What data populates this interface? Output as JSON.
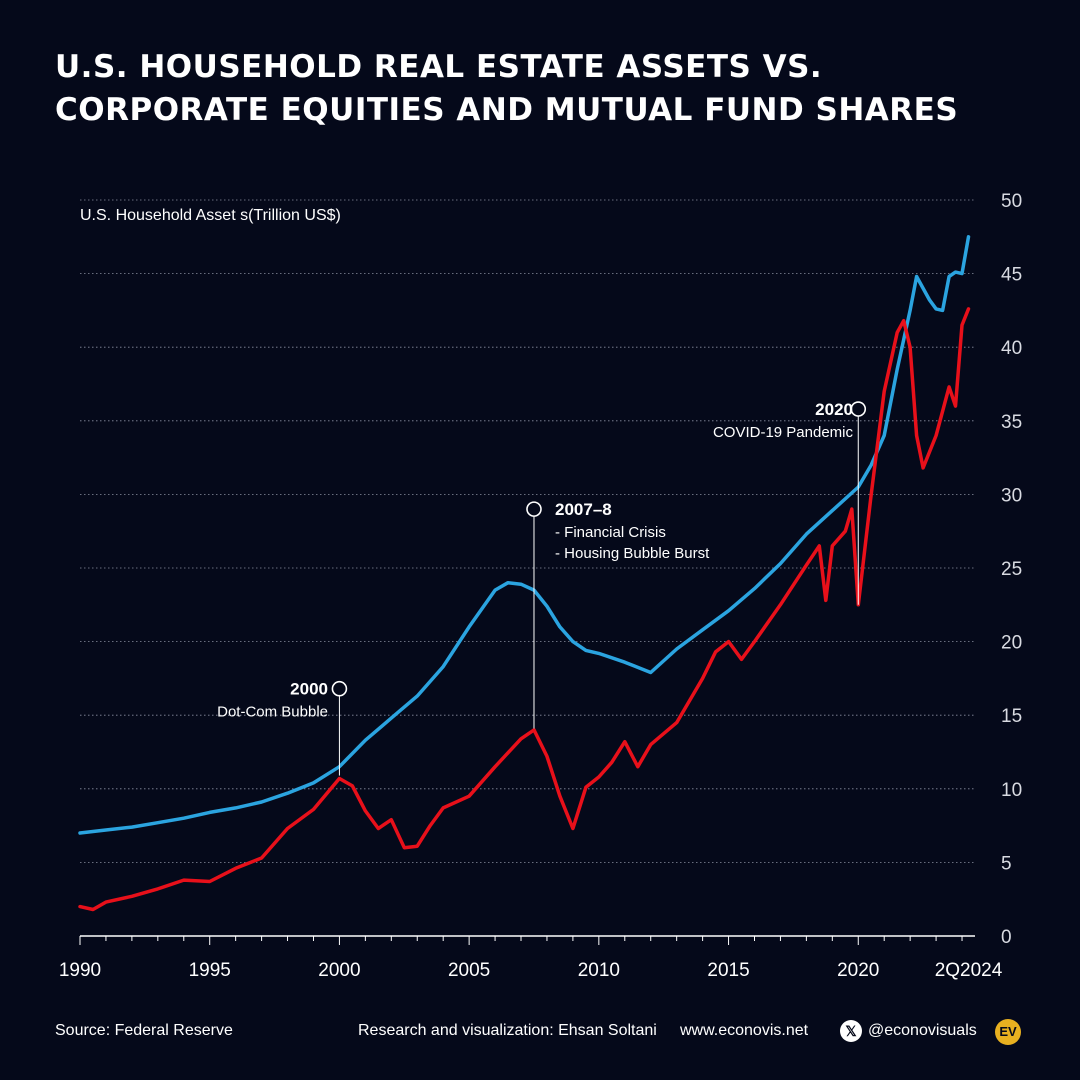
{
  "header": {
    "title_line1": "U.S. HOUSEHOLD REAL ESTATE ASSETS VS.",
    "title_line2": "CORPORATE EQUITIES AND MUTUAL FUND SHARES"
  },
  "chart_data": {
    "type": "line",
    "ylabel": "U.S. Household Asset s(Trillion US$)",
    "ylim": [
      0,
      50
    ],
    "y_ticks": [
      "0",
      "5",
      "10",
      "15",
      "20",
      "25",
      "30",
      "35",
      "40",
      "45",
      "50"
    ],
    "xlim": [
      1990,
      2024.5
    ],
    "x_ticks": [
      {
        "value": 1990,
        "label": "1990"
      },
      {
        "value": 1995,
        "label": "1995"
      },
      {
        "value": 2000,
        "label": "2000"
      },
      {
        "value": 2005,
        "label": "2005"
      },
      {
        "value": 2010,
        "label": "2010"
      },
      {
        "value": 2015,
        "label": "2015"
      },
      {
        "value": 2020,
        "label": "2020"
      },
      {
        "value": 2024.25,
        "label": "2Q2024"
      }
    ],
    "grid": true,
    "series": [
      {
        "color": "#2ba4e0",
        "points": [
          [
            1990,
            7.0
          ],
          [
            1991,
            7.2
          ],
          [
            1992,
            7.4
          ],
          [
            1993,
            7.7
          ],
          [
            1994,
            8.0
          ],
          [
            1995,
            8.4
          ],
          [
            1996,
            8.7
          ],
          [
            1997,
            9.1
          ],
          [
            1998,
            9.7
          ],
          [
            1999,
            10.4
          ],
          [
            2000,
            11.5
          ],
          [
            2001,
            13.3
          ],
          [
            2002,
            14.8
          ],
          [
            2003,
            16.3
          ],
          [
            2004,
            18.3
          ],
          [
            2005,
            21.0
          ],
          [
            2006,
            23.5
          ],
          [
            2006.5,
            24.0
          ],
          [
            2007,
            23.9
          ],
          [
            2007.5,
            23.5
          ],
          [
            2008,
            22.4
          ],
          [
            2008.5,
            21.0
          ],
          [
            2009,
            20.0
          ],
          [
            2009.5,
            19.4
          ],
          [
            2010,
            19.2
          ],
          [
            2011,
            18.6
          ],
          [
            2012,
            17.9
          ],
          [
            2013,
            19.5
          ],
          [
            2014,
            20.8
          ],
          [
            2015,
            22.1
          ],
          [
            2016,
            23.6
          ],
          [
            2017,
            25.3
          ],
          [
            2018,
            27.3
          ],
          [
            2019,
            28.9
          ],
          [
            2020,
            30.5
          ],
          [
            2020.5,
            32.0
          ],
          [
            2021,
            34.0
          ],
          [
            2021.5,
            38.5
          ],
          [
            2022,
            42.5
          ],
          [
            2022.25,
            44.8
          ],
          [
            2022.75,
            43.2
          ],
          [
            2023,
            42.6
          ],
          [
            2023.25,
            42.5
          ],
          [
            2023.5,
            44.8
          ],
          [
            2023.75,
            45.1
          ],
          [
            2024,
            45.0
          ],
          [
            2024.25,
            47.5
          ]
        ]
      },
      {
        "color": "#e8101a",
        "points": [
          [
            1990,
            2.0
          ],
          [
            1990.5,
            1.8
          ],
          [
            1991,
            2.3
          ],
          [
            1992,
            2.7
          ],
          [
            1993,
            3.2
          ],
          [
            1994,
            3.8
          ],
          [
            1995,
            3.7
          ],
          [
            1996,
            4.6
          ],
          [
            1997,
            5.3
          ],
          [
            1998,
            7.3
          ],
          [
            1999,
            8.6
          ],
          [
            2000,
            10.7
          ],
          [
            2000.5,
            10.2
          ],
          [
            2001,
            8.5
          ],
          [
            2001.5,
            7.3
          ],
          [
            2002,
            7.9
          ],
          [
            2002.5,
            6.0
          ],
          [
            2003,
            6.1
          ],
          [
            2003.5,
            7.5
          ],
          [
            2004,
            8.7
          ],
          [
            2005,
            9.5
          ],
          [
            2006,
            11.5
          ],
          [
            2007,
            13.4
          ],
          [
            2007.5,
            14.0
          ],
          [
            2008,
            12.2
          ],
          [
            2008.5,
            9.5
          ],
          [
            2009,
            7.3
          ],
          [
            2009.5,
            10.1
          ],
          [
            2010,
            10.8
          ],
          [
            2010.5,
            11.8
          ],
          [
            2011,
            13.2
          ],
          [
            2011.5,
            11.5
          ],
          [
            2012,
            13.0
          ],
          [
            2013,
            14.5
          ],
          [
            2014,
            17.5
          ],
          [
            2014.5,
            19.3
          ],
          [
            2015,
            20.0
          ],
          [
            2015.5,
            18.8
          ],
          [
            2016,
            20.0
          ],
          [
            2017,
            22.5
          ],
          [
            2018,
            25.2
          ],
          [
            2018.5,
            26.5
          ],
          [
            2018.75,
            22.8
          ],
          [
            2019,
            26.5
          ],
          [
            2019.5,
            27.5
          ],
          [
            2019.75,
            29.0
          ],
          [
            2020,
            22.5
          ],
          [
            2020.5,
            30.0
          ],
          [
            2021,
            37.0
          ],
          [
            2021.5,
            41.0
          ],
          [
            2021.75,
            41.8
          ],
          [
            2022,
            40.0
          ],
          [
            2022.25,
            34.0
          ],
          [
            2022.5,
            31.8
          ],
          [
            2023,
            34.0
          ],
          [
            2023.5,
            37.3
          ],
          [
            2023.75,
            36.0
          ],
          [
            2024,
            41.5
          ],
          [
            2024.25,
            42.6
          ]
        ]
      }
    ],
    "annotations": [
      {
        "year": 2000,
        "label_y": 16.8,
        "anchor_y": 10.9,
        "text_x": 328,
        "title": "2000",
        "lines": [
          "Dot-Com Bubble"
        ],
        "align": "end"
      },
      {
        "year": 2007.5,
        "label_y": 29.0,
        "anchor_y": 14.1,
        "text_x": 555,
        "title": "2007–8",
        "lines": [
          "- Financial Crisis",
          "- Housing Bubble Burst"
        ],
        "align": "start"
      },
      {
        "year": 2020,
        "label_y": 35.8,
        "anchor_y": 22.5,
        "text_x": 853,
        "title": "2020",
        "lines": [
          "COVID-19 Pandemic"
        ],
        "align": "end"
      }
    ]
  },
  "footer": {
    "source": "Source: Federal Reserve",
    "credit": "Research and visualization: Ehsan Soltani",
    "website": "www.econovis.net",
    "x_icon": "𝕏",
    "handle": "@econovisuals",
    "logo": "EV"
  }
}
